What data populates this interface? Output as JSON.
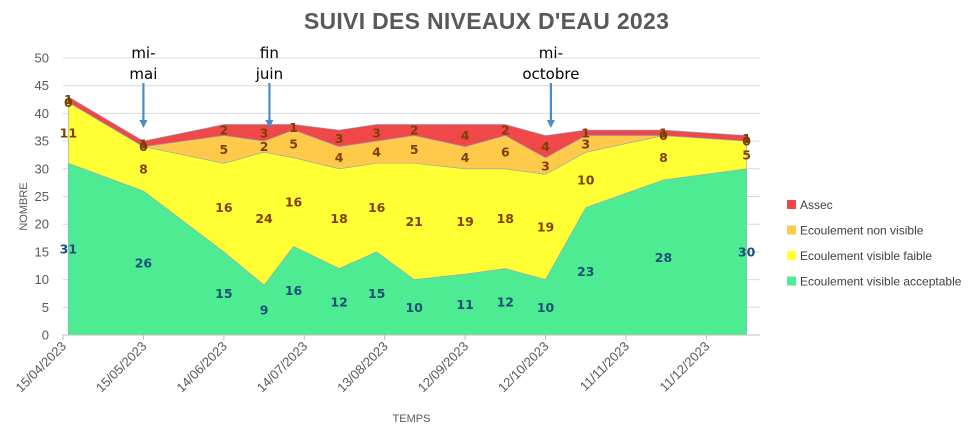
{
  "chart_data": {
    "type": "area",
    "title": "SUIVI DES NIVEAUX D'EAU 2023",
    "xlabel": "TEMPS",
    "ylabel": "NOMBRE",
    "ylim": [
      0,
      50
    ],
    "yticks": [
      0,
      5,
      10,
      15,
      20,
      25,
      30,
      35,
      40,
      45,
      50
    ],
    "xlim": [
      "2023-04-15",
      "2023-12-31"
    ],
    "xticks": [
      "15/04/2023",
      "15/05/2023",
      "14/06/2023",
      "14/07/2023",
      "13/08/2023",
      "12/09/2023",
      "12/10/2023",
      "11/11/2023",
      "11/12/2023"
    ],
    "xtick_dates": [
      "2023-04-15",
      "2023-05-15",
      "2023-06-14",
      "2023-07-14",
      "2023-08-13",
      "2023-09-12",
      "2023-10-12",
      "2023-11-11",
      "2023-12-11"
    ],
    "grid": true,
    "legend_position": "right",
    "stacked": true,
    "x": [
      "2023-04-17",
      "2023-05-15",
      "2023-06-14",
      "2023-06-29",
      "2023-07-10",
      "2023-07-27",
      "2023-08-10",
      "2023-08-24",
      "2023-09-12",
      "2023-09-27",
      "2023-10-12",
      "2023-10-27",
      "2023-11-25",
      "2023-12-26"
    ],
    "series": [
      {
        "name": "Ecoulement visible acceptable",
        "color": "#4DEB92",
        "label_color": "#1F4E79",
        "values": [
          31,
          26,
          15,
          9,
          16,
          12,
          15,
          10,
          11,
          12,
          10,
          23,
          28,
          30
        ]
      },
      {
        "name": "Ecoulement visible faible",
        "color": "#FFFF33",
        "label_color": "#7F3F00",
        "values": [
          11,
          8,
          16,
          24,
          16,
          18,
          16,
          21,
          19,
          18,
          19,
          10,
          8,
          5
        ]
      },
      {
        "name": "Ecoulement non visible",
        "color": "#FFC94A",
        "label_color": "#7F3F00",
        "values": [
          0,
          0,
          5,
          2,
          5,
          4,
          4,
          5,
          4,
          6,
          3,
          3,
          0,
          0
        ]
      },
      {
        "name": "Assec",
        "color": "#F04848",
        "label_color": "#7F3F00",
        "values": [
          1,
          1,
          2,
          3,
          1,
          3,
          3,
          2,
          4,
          2,
          4,
          1,
          1,
          1
        ]
      }
    ],
    "annotations": [
      {
        "lines": [
          "mi-",
          "mai"
        ],
        "date": "2023-05-15"
      },
      {
        "lines": [
          "fin",
          "juin"
        ],
        "date": "2023-07-01"
      },
      {
        "lines": [
          "mi-",
          "octobre"
        ],
        "date": "2023-10-14"
      }
    ]
  }
}
